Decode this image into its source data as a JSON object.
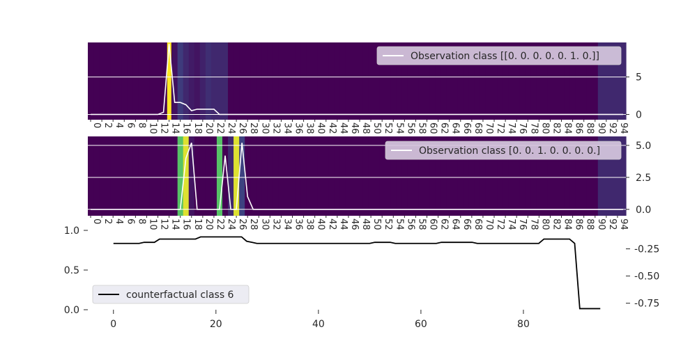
{
  "chart_data": [
    {
      "type": "heatmap",
      "panel": "top",
      "x": [
        0,
        1,
        2,
        3,
        4,
        5,
        6,
        7,
        8,
        9,
        10,
        11,
        12,
        13,
        14,
        15,
        16,
        17,
        18,
        19,
        20,
        21,
        22,
        23,
        24,
        25,
        26,
        27,
        28,
        29,
        30,
        31,
        32,
        33,
        34,
        35,
        36,
        37,
        38,
        39,
        40,
        41,
        42,
        43,
        44,
        45,
        46,
        47,
        48,
        49,
        50,
        51,
        52,
        53,
        54,
        55,
        56,
        57,
        58,
        59,
        60,
        61,
        62,
        63,
        64,
        65,
        66,
        67,
        68,
        69,
        70,
        71,
        72,
        73,
        74,
        75,
        76,
        77,
        78,
        79,
        80,
        81,
        82,
        83,
        84,
        85,
        86,
        87,
        88,
        89,
        90,
        91,
        92,
        93,
        94,
        95
      ],
      "values": [
        0,
        0,
        0,
        0,
        0,
        0,
        0,
        0,
        0,
        0,
        0,
        0,
        0,
        0,
        0,
        0.05,
        0.18,
        0.12,
        0.08,
        0.06,
        0.1,
        0.14,
        0.12,
        0.12,
        0.12,
        0,
        0,
        0,
        0,
        0,
        0,
        0,
        0,
        0,
        0,
        0,
        0,
        0,
        0,
        0,
        0,
        0,
        0,
        0,
        0,
        0,
        0,
        0,
        0,
        0,
        0,
        0,
        0,
        0,
        0,
        0,
        0,
        0,
        0,
        0,
        0,
        0,
        0,
        0,
        0,
        0,
        0,
        0,
        0,
        0,
        0,
        0,
        0,
        0,
        0,
        0,
        0,
        0,
        0,
        0,
        0,
        0,
        0,
        0,
        0,
        0,
        0,
        0,
        0,
        0,
        0,
        0.12,
        0.12,
        0.12,
        0.12,
        0.12
      ],
      "peak_index": 14,
      "series": [
        {
          "name": "Observation class [[0. 0. 0. 0. 0. 1. 0.]]",
          "values": [
            0,
            0,
            0,
            0,
            0,
            0,
            0,
            0,
            0,
            0,
            0,
            0,
            0,
            0.3,
            9.4,
            1.6,
            1.6,
            1.3,
            0.5,
            0.7,
            0.7,
            0.7,
            0.7,
            0,
            0,
            0,
            0,
            0,
            0,
            0,
            0,
            0,
            0,
            0,
            0,
            0,
            0,
            0,
            0,
            0,
            0,
            0,
            0,
            0,
            0,
            0,
            0,
            0,
            0,
            0,
            0,
            0,
            0,
            0,
            0,
            0,
            0,
            0,
            0,
            0,
            0,
            0,
            0,
            0,
            0,
            0,
            0,
            0,
            0,
            0,
            0,
            0,
            0,
            0,
            0,
            0,
            0,
            0,
            0,
            0,
            0,
            0,
            0,
            0,
            0,
            0,
            0,
            0,
            0,
            0,
            0,
            0,
            0,
            0,
            0,
            0
          ]
        }
      ],
      "y_ticks": [
        "0",
        "5"
      ],
      "ylim": [
        -0.7,
        9.6
      ],
      "x_tick_labels": [
        "0",
        "2",
        "4",
        "6",
        "8",
        "10",
        "12",
        "14",
        "16",
        "18",
        "20",
        "22",
        "24",
        "26",
        "28",
        "30",
        "32",
        "34",
        "36",
        "38",
        "40",
        "42",
        "44",
        "46",
        "48",
        "50",
        "52",
        "54",
        "56",
        "58",
        "60",
        "62",
        "64",
        "66",
        "68",
        "70",
        "72",
        "74",
        "76",
        "78",
        "80",
        "82",
        "84",
        "86",
        "88",
        "90",
        "92",
        "94"
      ],
      "legend": "top-right"
    },
    {
      "type": "heatmap",
      "panel": "middle",
      "x": [
        0,
        1,
        2,
        3,
        4,
        5,
        6,
        7,
        8,
        9,
        10,
        11,
        12,
        13,
        14,
        15,
        16,
        17,
        18,
        19,
        20,
        21,
        22,
        23,
        24,
        25,
        26,
        27,
        28,
        29,
        30,
        31,
        32,
        33,
        34,
        35,
        36,
        37,
        38,
        39,
        40,
        41,
        42,
        43,
        44,
        45,
        46,
        47,
        48,
        49,
        50,
        51,
        52,
        53,
        54,
        55,
        56,
        57,
        58,
        59,
        60,
        61,
        62,
        63,
        64,
        65,
        66,
        67,
        68,
        69,
        70,
        71,
        72,
        73,
        74,
        75,
        76,
        77,
        78,
        79,
        80,
        81,
        82,
        83,
        84,
        85,
        86,
        87,
        88,
        89,
        90,
        91,
        92,
        93,
        94,
        95
      ],
      "values": [
        0,
        0,
        0,
        0,
        0,
        0,
        0,
        0,
        0,
        0,
        0,
        0,
        0,
        0,
        0,
        0,
        0.72,
        0.95,
        0.06,
        0,
        0,
        0,
        0,
        0.72,
        0,
        0.12,
        0.95,
        0.2,
        0,
        0,
        0,
        0,
        0,
        0,
        0,
        0,
        0,
        0,
        0,
        0,
        0,
        0,
        0,
        0,
        0,
        0,
        0,
        0,
        0,
        0,
        0,
        0,
        0,
        0,
        0,
        0,
        0,
        0,
        0,
        0,
        0,
        0,
        0,
        0,
        0,
        0,
        0,
        0,
        0,
        0,
        0,
        0,
        0,
        0,
        0,
        0,
        0,
        0,
        0,
        0,
        0,
        0,
        0,
        0,
        0,
        0,
        0,
        0,
        0,
        0,
        0,
        0.12,
        0.12,
        0.12,
        0.12,
        0.12
      ],
      "series": [
        {
          "name": "Observation class [0. 0. 1. 0. 0. 0. 0.]",
          "values": [
            0,
            0,
            0,
            0,
            0,
            0,
            0,
            0,
            0,
            0,
            0,
            0,
            0,
            0,
            0,
            0,
            0,
            4.0,
            5.2,
            0,
            0,
            0,
            0,
            0,
            4.2,
            0,
            0,
            5.2,
            1.0,
            0,
            0,
            0,
            0,
            0,
            0,
            0,
            0,
            0,
            0,
            0,
            0,
            0,
            0,
            0,
            0,
            0,
            0,
            0,
            0,
            0,
            0,
            0,
            0,
            0,
            0,
            0,
            0,
            0,
            0,
            0,
            0,
            0,
            0,
            0,
            0,
            0,
            0,
            0,
            0,
            0,
            0,
            0,
            0,
            0,
            0,
            0,
            0,
            0,
            0,
            0,
            0,
            0,
            0,
            0,
            0,
            0,
            0,
            0,
            0,
            0,
            0,
            0,
            0,
            0,
            0,
            0
          ]
        }
      ],
      "y_ticks": [
        "0.0",
        "2.5",
        "5.0"
      ],
      "ylim": [
        -0.5,
        5.7
      ],
      "x_tick_labels": [
        "0",
        "2",
        "4",
        "6",
        "8",
        "10",
        "12",
        "14",
        "16",
        "18",
        "20",
        "22",
        "24",
        "26",
        "28",
        "30",
        "32",
        "34",
        "36",
        "38",
        "40",
        "42",
        "44",
        "46",
        "48",
        "50",
        "52",
        "54",
        "56",
        "58",
        "60",
        "62",
        "64",
        "66",
        "68",
        "70",
        "72",
        "74",
        "76",
        "78",
        "80",
        "82",
        "84",
        "86",
        "88",
        "90",
        "92",
        "94"
      ],
      "legend": "top-right"
    },
    {
      "type": "line",
      "panel": "bottom",
      "x_ticks": [
        "0",
        "20",
        "40",
        "60",
        "80"
      ],
      "xlim": [
        -5,
        100
      ],
      "left_y_ticks": [
        "0.0",
        "0.5",
        "1.0"
      ],
      "left_ylim": [
        0,
        1
      ],
      "right_y_ticks": [
        "-0.25",
        "-0.50",
        "-0.75"
      ],
      "right_ylim": [
        -0.81,
        -0.08
      ],
      "series": [
        {
          "name": "counterfactual class 6",
          "color": "#000000",
          "x": [
            0,
            1,
            2,
            3,
            4,
            5,
            6,
            7,
            8,
            9,
            10,
            11,
            12,
            13,
            14,
            15,
            16,
            17,
            18,
            19,
            20,
            21,
            22,
            23,
            24,
            25,
            26,
            27,
            28,
            29,
            30,
            31,
            32,
            33,
            34,
            35,
            36,
            37,
            38,
            39,
            40,
            41,
            42,
            43,
            44,
            45,
            46,
            47,
            48,
            49,
            50,
            51,
            52,
            53,
            54,
            55,
            56,
            57,
            58,
            59,
            60,
            61,
            62,
            63,
            64,
            65,
            66,
            67,
            68,
            69,
            70,
            71,
            72,
            73,
            74,
            75,
            76,
            77,
            78,
            79,
            80,
            81,
            82,
            83,
            84,
            85,
            86,
            87,
            88,
            89,
            90,
            91,
            92,
            93,
            94,
            95
          ],
          "values": [
            -0.2,
            -0.2,
            -0.2,
            -0.2,
            -0.2,
            -0.2,
            -0.19,
            -0.19,
            -0.19,
            -0.16,
            -0.16,
            -0.16,
            -0.16,
            -0.16,
            -0.16,
            -0.16,
            -0.16,
            -0.14,
            -0.14,
            -0.14,
            -0.14,
            -0.14,
            -0.14,
            -0.14,
            -0.14,
            -0.14,
            -0.18,
            -0.19,
            -0.2,
            -0.2,
            -0.2,
            -0.2,
            -0.2,
            -0.2,
            -0.2,
            -0.2,
            -0.2,
            -0.2,
            -0.2,
            -0.2,
            -0.2,
            -0.2,
            -0.2,
            -0.2,
            -0.2,
            -0.2,
            -0.2,
            -0.2,
            -0.2,
            -0.2,
            -0.2,
            -0.19,
            -0.19,
            -0.19,
            -0.19,
            -0.2,
            -0.2,
            -0.2,
            -0.2,
            -0.2,
            -0.2,
            -0.2,
            -0.2,
            -0.2,
            -0.19,
            -0.19,
            -0.19,
            -0.19,
            -0.19,
            -0.19,
            -0.19,
            -0.2,
            -0.2,
            -0.2,
            -0.2,
            -0.2,
            -0.2,
            -0.2,
            -0.2,
            -0.2,
            -0.2,
            -0.2,
            -0.2,
            -0.2,
            -0.16,
            -0.16,
            -0.16,
            -0.16,
            -0.16,
            -0.16,
            -0.2,
            -0.8,
            -0.8,
            -0.8,
            -0.8,
            -0.8
          ]
        }
      ],
      "legend": "lower-left"
    }
  ]
}
